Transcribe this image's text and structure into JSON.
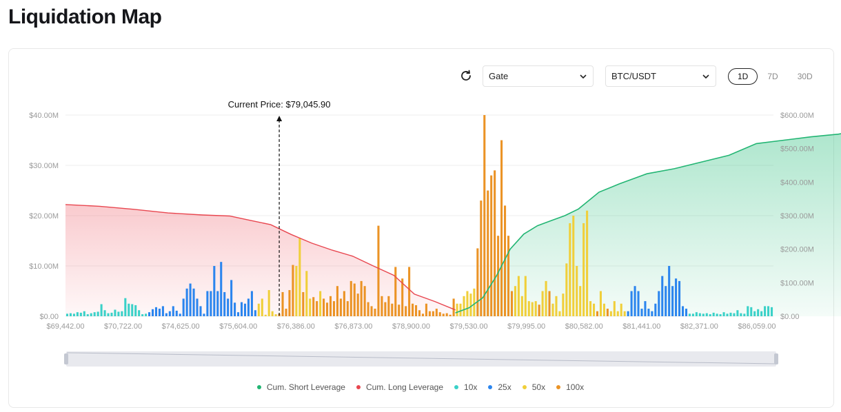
{
  "page": {
    "title": "Liquidation Map"
  },
  "controls": {
    "exchange": "Gate",
    "pair": "BTC/USDT",
    "ranges": [
      "1D",
      "7D",
      "30D"
    ],
    "active_range": "1D"
  },
  "colors": {
    "short": "#22b573",
    "long": "#e8464f",
    "x10": "#3ad1c8",
    "x25": "#2b85ee",
    "x50": "#f0cf3a",
    "x100": "#eb9325"
  },
  "chart_data": {
    "type": "bar",
    "current_price_label": "Current Price: $79,045.90",
    "current_price_category_index": 62,
    "left_axis": {
      "ticks": [
        "$0.00",
        "$10.00M",
        "$20.00M",
        "$30.00M",
        "$40.00M"
      ],
      "ylim": [
        0,
        40
      ]
    },
    "right_axis": {
      "ticks": [
        "$0.00",
        "$100.00M",
        "$200.00M",
        "$300.00M",
        "$400.00M",
        "$500.00M",
        "$600.00M"
      ],
      "ylim": [
        0,
        600
      ]
    },
    "x_tick_labels": [
      "$69,442.00",
      "$70,722.00",
      "$74,625.00",
      "$75,604.00",
      "$76,386.00",
      "$76,873.00",
      "$78,900.00",
      "$79,530.00",
      "$79,995.00",
      "$80,582.00",
      "$81,441.00",
      "$82,371.00",
      "$86,059.00"
    ],
    "grid": true,
    "legend": [
      "Cum. Short Leverage",
      "Cum. Long Leverage",
      "10x",
      "25x",
      "50x",
      "100x"
    ],
    "legend_position": "bottom",
    "bars": [
      {
        "l": "10x",
        "v": 0.5
      },
      {
        "l": "10x",
        "v": 0.6
      },
      {
        "l": "10x",
        "v": 0.5
      },
      {
        "l": "10x",
        "v": 0.8
      },
      {
        "l": "10x",
        "v": 0.7
      },
      {
        "l": "10x",
        "v": 1.0
      },
      {
        "l": "10x",
        "v": 0.4
      },
      {
        "l": "10x",
        "v": 0.6
      },
      {
        "l": "10x",
        "v": 0.8
      },
      {
        "l": "10x",
        "v": 0.9
      },
      {
        "l": "10x",
        "v": 2.4
      },
      {
        "l": "10x",
        "v": 1.2
      },
      {
        "l": "10x",
        "v": 0.6
      },
      {
        "l": "10x",
        "v": 0.7
      },
      {
        "l": "10x",
        "v": 1.3
      },
      {
        "l": "10x",
        "v": 0.9
      },
      {
        "l": "10x",
        "v": 1.0
      },
      {
        "l": "10x",
        "v": 3.6
      },
      {
        "l": "10x",
        "v": 2.5
      },
      {
        "l": "10x",
        "v": 2.4
      },
      {
        "l": "10x",
        "v": 2.2
      },
      {
        "l": "10x",
        "v": 1.2
      },
      {
        "l": "10x",
        "v": 0.4
      },
      {
        "l": "10x",
        "v": 0.5
      },
      {
        "l": "25x",
        "v": 0.8
      },
      {
        "l": "25x",
        "v": 1.4
      },
      {
        "l": "25x",
        "v": 1.8
      },
      {
        "l": "25x",
        "v": 1.5
      },
      {
        "l": "25x",
        "v": 2.0
      },
      {
        "l": "25x",
        "v": 0.6
      },
      {
        "l": "25x",
        "v": 1.0
      },
      {
        "l": "25x",
        "v": 2.0
      },
      {
        "l": "25x",
        "v": 1.1
      },
      {
        "l": "25x",
        "v": 0.5
      },
      {
        "l": "25x",
        "v": 3.5
      },
      {
        "l": "25x",
        "v": 5.5
      },
      {
        "l": "25x",
        "v": 6.5
      },
      {
        "l": "25x",
        "v": 5.5
      },
      {
        "l": "25x",
        "v": 3.5
      },
      {
        "l": "25x",
        "v": 2.0
      },
      {
        "l": "25x",
        "v": 0.5
      },
      {
        "l": "25x",
        "v": 5.0
      },
      {
        "l": "25x",
        "v": 5.0
      },
      {
        "l": "25x",
        "v": 10.0
      },
      {
        "l": "25x",
        "v": 5.0
      },
      {
        "l": "25x",
        "v": 10.8
      },
      {
        "l": "25x",
        "v": 4.8
      },
      {
        "l": "25x",
        "v": 3.5
      },
      {
        "l": "25x",
        "v": 7.2
      },
      {
        "l": "25x",
        "v": 2.7
      },
      {
        "l": "25x",
        "v": 0.8
      },
      {
        "l": "25x",
        "v": 2.8
      },
      {
        "l": "25x",
        "v": 2.5
      },
      {
        "l": "25x",
        "v": 3.5
      },
      {
        "l": "25x",
        "v": 5.0
      },
      {
        "l": "25x",
        "v": 1.2
      },
      {
        "l": "50x",
        "v": 2.5
      },
      {
        "l": "50x",
        "v": 3.5
      },
      {
        "l": "50x",
        "v": 0.3
      },
      {
        "l": "50x",
        "v": 5.2
      },
      {
        "l": "50x",
        "v": 1.0
      },
      {
        "l": "50x",
        "v": 0.4
      },
      {
        "l": "100x",
        "v": 0.5
      },
      {
        "l": "100x",
        "v": 4.8
      },
      {
        "l": "100x",
        "v": 1.5
      },
      {
        "l": "100x",
        "v": 5.2
      },
      {
        "l": "100x",
        "v": 10.2
      },
      {
        "l": "50x",
        "v": 10.0
      },
      {
        "l": "50x",
        "v": 15.5
      },
      {
        "l": "100x",
        "v": 4.8
      },
      {
        "l": "50x",
        "v": 9.0
      },
      {
        "l": "50x",
        "v": 3.5
      },
      {
        "l": "100x",
        "v": 3.8
      },
      {
        "l": "100x",
        "v": 3.0
      },
      {
        "l": "50x",
        "v": 5.0
      },
      {
        "l": "100x",
        "v": 3.5
      },
      {
        "l": "100x",
        "v": 2.7
      },
      {
        "l": "100x",
        "v": 4.0
      },
      {
        "l": "100x",
        "v": 3.0
      },
      {
        "l": "100x",
        "v": 6.0
      },
      {
        "l": "100x",
        "v": 3.5
      },
      {
        "l": "100x",
        "v": 5.0
      },
      {
        "l": "100x",
        "v": 3.0
      },
      {
        "l": "100x",
        "v": 7.0
      },
      {
        "l": "100x",
        "v": 6.5
      },
      {
        "l": "100x",
        "v": 4.5
      },
      {
        "l": "100x",
        "v": 7.0
      },
      {
        "l": "100x",
        "v": 6.0
      },
      {
        "l": "100x",
        "v": 2.8
      },
      {
        "l": "100x",
        "v": 2.0
      },
      {
        "l": "100x",
        "v": 1.5
      },
      {
        "l": "100x",
        "v": 18.0
      },
      {
        "l": "100x",
        "v": 4.0
      },
      {
        "l": "100x",
        "v": 2.8
      },
      {
        "l": "100x",
        "v": 4.0
      },
      {
        "l": "100x",
        "v": 2.5
      },
      {
        "l": "100x",
        "v": 9.8
      },
      {
        "l": "100x",
        "v": 2.3
      },
      {
        "l": "100x",
        "v": 7.5
      },
      {
        "l": "100x",
        "v": 2.0
      },
      {
        "l": "100x",
        "v": 9.8
      },
      {
        "l": "100x",
        "v": 2.5
      },
      {
        "l": "100x",
        "v": 2.2
      },
      {
        "l": "100x",
        "v": 1.2
      },
      {
        "l": "100x",
        "v": 0.5
      },
      {
        "l": "100x",
        "v": 2.5
      },
      {
        "l": "100x",
        "v": 1.0
      },
      {
        "l": "100x",
        "v": 1.0
      },
      {
        "l": "100x",
        "v": 1.5
      },
      {
        "l": "100x",
        "v": 0.8
      },
      {
        "l": "100x",
        "v": 0.5
      },
      {
        "l": "100x",
        "v": 0.6
      },
      {
        "l": "100x",
        "v": 0.3
      },
      {
        "l": "100x",
        "v": 3.5
      },
      {
        "l": "50x",
        "v": 2.5
      },
      {
        "l": "50x",
        "v": 2.5
      },
      {
        "l": "50x",
        "v": 4.0
      },
      {
        "l": "50x",
        "v": 5.0
      },
      {
        "l": "50x",
        "v": 4.5
      },
      {
        "l": "50x",
        "v": 5.5
      },
      {
        "l": "100x",
        "v": 13.5
      },
      {
        "l": "100x",
        "v": 23.0
      },
      {
        "l": "100x",
        "v": 40.0
      },
      {
        "l": "100x",
        "v": 25.0
      },
      {
        "l": "100x",
        "v": 28.0
      },
      {
        "l": "100x",
        "v": 29.0
      },
      {
        "l": "100x",
        "v": 16.0
      },
      {
        "l": "100x",
        "v": 35.0
      },
      {
        "l": "100x",
        "v": 22.0
      },
      {
        "l": "100x",
        "v": 16.0
      },
      {
        "l": "100x",
        "v": 5.0
      },
      {
        "l": "50x",
        "v": 6.0
      },
      {
        "l": "50x",
        "v": 8.0
      },
      {
        "l": "50x",
        "v": 4.0
      },
      {
        "l": "50x",
        "v": 8.0
      },
      {
        "l": "50x",
        "v": 3.0
      },
      {
        "l": "50x",
        "v": 2.8
      },
      {
        "l": "50x",
        "v": 3.0
      },
      {
        "l": "100x",
        "v": 2.3
      },
      {
        "l": "50x",
        "v": 5.0
      },
      {
        "l": "50x",
        "v": 7.0
      },
      {
        "l": "100x",
        "v": 5.0
      },
      {
        "l": "50x",
        "v": 2.5
      },
      {
        "l": "50x",
        "v": 4.0
      },
      {
        "l": "50x",
        "v": 1.0
      },
      {
        "l": "50x",
        "v": 4.5
      },
      {
        "l": "50x",
        "v": 10.5
      },
      {
        "l": "50x",
        "v": 18.5
      },
      {
        "l": "50x",
        "v": 20.0
      },
      {
        "l": "50x",
        "v": 10.0
      },
      {
        "l": "50x",
        "v": 6.0
      },
      {
        "l": "50x",
        "v": 18.5
      },
      {
        "l": "50x",
        "v": 21.0
      },
      {
        "l": "50x",
        "v": 3.0
      },
      {
        "l": "50x",
        "v": 2.5
      },
      {
        "l": "100x",
        "v": 1.0
      },
      {
        "l": "50x",
        "v": 5.0
      },
      {
        "l": "50x",
        "v": 2.5
      },
      {
        "l": "100x",
        "v": 1.5
      },
      {
        "l": "50x",
        "v": 1.0
      },
      {
        "l": "50x",
        "v": 3.0
      },
      {
        "l": "50x",
        "v": 1.0
      },
      {
        "l": "50x",
        "v": 2.5
      },
      {
        "l": "50x",
        "v": 1.0
      },
      {
        "l": "25x",
        "v": 1.0
      },
      {
        "l": "25x",
        "v": 5.0
      },
      {
        "l": "25x",
        "v": 6.0
      },
      {
        "l": "25x",
        "v": 5.0
      },
      {
        "l": "25x",
        "v": 1.5
      },
      {
        "l": "25x",
        "v": 3.0
      },
      {
        "l": "25x",
        "v": 1.5
      },
      {
        "l": "25x",
        "v": 1.0
      },
      {
        "l": "25x",
        "v": 2.5
      },
      {
        "l": "25x",
        "v": 5.0
      },
      {
        "l": "25x",
        "v": 8.0
      },
      {
        "l": "25x",
        "v": 6.0
      },
      {
        "l": "25x",
        "v": 10.0
      },
      {
        "l": "25x",
        "v": 6.0
      },
      {
        "l": "25x",
        "v": 7.5
      },
      {
        "l": "25x",
        "v": 7.0
      },
      {
        "l": "25x",
        "v": 2.0
      },
      {
        "l": "25x",
        "v": 1.5
      },
      {
        "l": "10x",
        "v": 0.5
      },
      {
        "l": "10x",
        "v": 0.5
      },
      {
        "l": "10x",
        "v": 0.8
      },
      {
        "l": "10x",
        "v": 0.6
      },
      {
        "l": "10x",
        "v": 0.5
      },
      {
        "l": "10x",
        "v": 0.6
      },
      {
        "l": "10x",
        "v": 0.4
      },
      {
        "l": "10x",
        "v": 0.7
      },
      {
        "l": "10x",
        "v": 0.5
      },
      {
        "l": "10x",
        "v": 0.4
      },
      {
        "l": "10x",
        "v": 0.8
      },
      {
        "l": "10x",
        "v": 0.5
      },
      {
        "l": "10x",
        "v": 0.7
      },
      {
        "l": "10x",
        "v": 0.6
      },
      {
        "l": "10x",
        "v": 1.2
      },
      {
        "l": "10x",
        "v": 0.6
      },
      {
        "l": "10x",
        "v": 0.5
      },
      {
        "l": "10x",
        "v": 2.0
      },
      {
        "l": "10x",
        "v": 1.8
      },
      {
        "l": "10x",
        "v": 1.0
      },
      {
        "l": "10x",
        "v": 1.4
      },
      {
        "l": "10x",
        "v": 1.0
      },
      {
        "l": "10x",
        "v": 2.0
      },
      {
        "l": "10x",
        "v": 2.0
      },
      {
        "l": "10x",
        "v": 1.8
      }
    ],
    "cum_long": {
      "name": "Cum. Long Leverage",
      "x_index": [
        0,
        10,
        20,
        30,
        40,
        48,
        54,
        60,
        66,
        72,
        78,
        84,
        90,
        96,
        102,
        108,
        114
      ],
      "values": [
        333,
        328,
        319,
        308,
        302,
        299,
        286,
        273,
        244,
        218,
        197,
        179,
        150,
        122,
        66,
        44,
        19
      ]
    },
    "cum_short": {
      "name": "Cum. Short Leverage",
      "x_index": [
        114,
        118,
        122,
        126,
        130,
        134,
        138,
        142,
        146,
        150,
        156,
        162,
        170,
        178,
        186,
        194,
        202,
        210,
        218,
        226,
        227
      ],
      "values": [
        10,
        25,
        55,
        120,
        200,
        245,
        270,
        285,
        300,
        320,
        370,
        395,
        425,
        440,
        460,
        480,
        515,
        525,
        535,
        543,
        545
      ]
    }
  }
}
